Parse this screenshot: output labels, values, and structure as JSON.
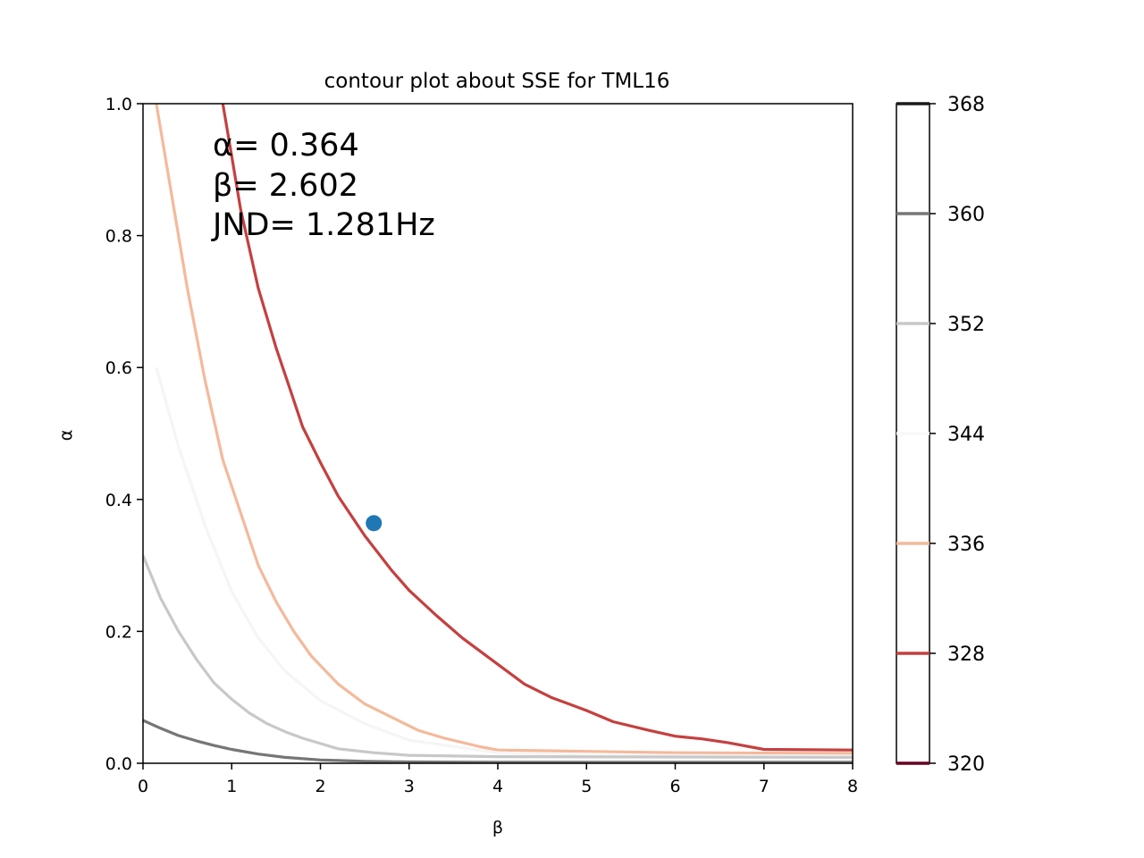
{
  "chart_data": {
    "type": "contour",
    "title": "contour plot about SSE for TML16",
    "xlabel": "β",
    "ylabel": "α",
    "xlim": [
      0,
      8
    ],
    "ylim": [
      0,
      1.0
    ],
    "x_ticks": [
      0,
      1,
      2,
      3,
      4,
      5,
      6,
      7,
      8
    ],
    "x_tick_labels": [
      "0",
      "1",
      "2",
      "3",
      "4",
      "5",
      "6",
      "7",
      "8"
    ],
    "y_ticks": [
      0.0,
      0.2,
      0.4,
      0.6,
      0.8,
      1.0
    ],
    "y_tick_labels": [
      "0.0",
      "0.2",
      "0.4",
      "0.6",
      "0.8",
      "1.0"
    ],
    "grid": false,
    "annotation": [
      "α= 0.364",
      "β= 2.602",
      "JND= 1.281Hz"
    ],
    "best_fit_point": {
      "x": 2.602,
      "y": 0.364,
      "color": "#1f77b4"
    },
    "colorbar": {
      "range": [
        320,
        368
      ],
      "ticks": [
        320,
        328,
        336,
        344,
        352,
        360,
        368
      ],
      "tick_labels": [
        "320",
        "328",
        "336",
        "344",
        "352",
        "360",
        "368"
      ],
      "line_levels": [
        {
          "level": 320,
          "color": "#67001f"
        },
        {
          "level": 328,
          "color": "#c4403f"
        },
        {
          "level": 336,
          "color": "#f4b99b"
        },
        {
          "level": 344,
          "color": "#f8f8f8"
        },
        {
          "level": 352,
          "color": "#c8c8c8"
        },
        {
          "level": 360,
          "color": "#767676"
        },
        {
          "level": 368,
          "color": "#1a1a1a"
        }
      ]
    },
    "contours": [
      {
        "level": 328,
        "color": "#c4403f",
        "points": [
          [
            0.9,
            1.0
          ],
          [
            1.0,
            0.92
          ],
          [
            1.1,
            0.84
          ],
          [
            1.3,
            0.72
          ],
          [
            1.5,
            0.63
          ],
          [
            1.65,
            0.57
          ],
          [
            1.8,
            0.51
          ],
          [
            2.0,
            0.456
          ],
          [
            2.2,
            0.405
          ],
          [
            2.5,
            0.345
          ],
          [
            2.8,
            0.293
          ],
          [
            3.0,
            0.262
          ],
          [
            3.3,
            0.225
          ],
          [
            3.6,
            0.19
          ],
          [
            4.0,
            0.15
          ],
          [
            4.3,
            0.12
          ],
          [
            4.6,
            0.1
          ],
          [
            5.0,
            0.08
          ],
          [
            5.3,
            0.063
          ],
          [
            5.7,
            0.05
          ],
          [
            6.0,
            0.041
          ],
          [
            6.3,
            0.037
          ],
          [
            6.6,
            0.031
          ],
          [
            7.0,
            0.021
          ],
          [
            8.0,
            0.02
          ]
        ]
      },
      {
        "level": 336,
        "color": "#f4b99b",
        "points": [
          [
            0.15,
            1.0
          ],
          [
            0.3,
            0.88
          ],
          [
            0.5,
            0.72
          ],
          [
            0.7,
            0.58
          ],
          [
            0.9,
            0.46
          ],
          [
            1.1,
            0.38
          ],
          [
            1.3,
            0.3
          ],
          [
            1.5,
            0.245
          ],
          [
            1.7,
            0.2
          ],
          [
            1.9,
            0.162
          ],
          [
            2.2,
            0.12
          ],
          [
            2.5,
            0.09
          ],
          [
            2.8,
            0.07
          ],
          [
            3.1,
            0.05
          ],
          [
            3.4,
            0.038
          ],
          [
            3.8,
            0.025
          ],
          [
            4.0,
            0.02
          ],
          [
            5.0,
            0.018
          ],
          [
            6.0,
            0.016
          ],
          [
            8.0,
            0.015
          ]
        ]
      },
      {
        "level": 344,
        "color": "#f5f5f5",
        "points": [
          [
            0.15,
            0.6
          ],
          [
            0.4,
            0.48
          ],
          [
            0.7,
            0.36
          ],
          [
            1.0,
            0.26
          ],
          [
            1.3,
            0.19
          ],
          [
            1.6,
            0.14
          ],
          [
            2.0,
            0.095
          ],
          [
            2.5,
            0.06
          ],
          [
            3.0,
            0.035
          ],
          [
            4.0,
            0.016
          ],
          [
            5.0,
            0.012
          ],
          [
            8.0,
            0.011
          ]
        ]
      },
      {
        "level": 352,
        "color": "#c8c8c8",
        "points": [
          [
            0.0,
            0.315
          ],
          [
            0.2,
            0.25
          ],
          [
            0.4,
            0.2
          ],
          [
            0.6,
            0.158
          ],
          [
            0.8,
            0.122
          ],
          [
            1.0,
            0.097
          ],
          [
            1.2,
            0.076
          ],
          [
            1.4,
            0.06
          ],
          [
            1.6,
            0.048
          ],
          [
            1.8,
            0.038
          ],
          [
            2.0,
            0.03
          ],
          [
            2.2,
            0.022
          ],
          [
            2.6,
            0.016
          ],
          [
            3.0,
            0.012
          ],
          [
            4.0,
            0.01
          ],
          [
            8.0,
            0.009
          ]
        ]
      },
      {
        "level": 360,
        "color": "#767676",
        "points": [
          [
            0.0,
            0.065
          ],
          [
            0.2,
            0.053
          ],
          [
            0.4,
            0.042
          ],
          [
            0.6,
            0.034
          ],
          [
            0.8,
            0.027
          ],
          [
            1.0,
            0.021
          ],
          [
            1.3,
            0.014
          ],
          [
            1.6,
            0.009
          ],
          [
            2.0,
            0.005
          ],
          [
            2.5,
            0.003
          ],
          [
            3.0,
            0.002
          ],
          [
            4.0,
            0.0015
          ],
          [
            8.0,
            0.0015
          ]
        ]
      }
    ]
  }
}
